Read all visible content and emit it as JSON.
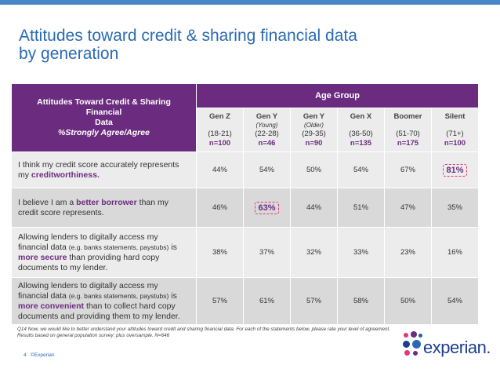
{
  "title_line1": "Attitudes toward credit & sharing financial data",
  "title_line2": "by generation",
  "header": {
    "left_line1": "Attitudes Toward Credit & Sharing Financial",
    "left_line2": "Data",
    "left_line3": "%Strongly Agree/Agree",
    "age_group": "Age Group"
  },
  "generations": [
    {
      "name": "Gen Z",
      "note": "",
      "age": "(18-21)",
      "n": "n=100"
    },
    {
      "name": "Gen Y",
      "note": "(Young)",
      "age": "(22-28)",
      "n": "n=46"
    },
    {
      "name": "Gen Y",
      "note": "(Older)",
      "age": "(29-35)",
      "n": "n=90"
    },
    {
      "name": "Gen X",
      "note": "",
      "age": "(36-50)",
      "n": "n=135"
    },
    {
      "name": "Boomer",
      "note": "",
      "age": "(51-70)",
      "n": "n=175"
    },
    {
      "name": "Silent",
      "note": "",
      "age": "(71+)",
      "n": "n=100"
    }
  ],
  "rows": [
    {
      "parts": [
        {
          "t": "I think my credit score accurately represents my ",
          "s": ""
        },
        {
          "t": "creditworthiness.",
          "s": "hl"
        }
      ],
      "values": [
        "44%",
        "54%",
        "50%",
        "54%",
        "67%",
        "81%"
      ],
      "highlight": 5
    },
    {
      "parts": [
        {
          "t": "I believe I am a ",
          "s": ""
        },
        {
          "t": "better borrower",
          "s": "hl"
        },
        {
          "t": " than my credit score represents.",
          "s": ""
        }
      ],
      "values": [
        "46%",
        "63%",
        "44%",
        "51%",
        "47%",
        "35%"
      ],
      "highlight": 1
    },
    {
      "parts": [
        {
          "t": "Allowing lenders to digitally access my financial data ",
          "s": ""
        },
        {
          "t": "(e.g. banks statements, paystubs)",
          "s": "sm"
        },
        {
          "t": " is ",
          "s": ""
        },
        {
          "t": "more secure",
          "s": "hl"
        },
        {
          "t": " than providing hard copy documents to my lender.",
          "s": ""
        }
      ],
      "values": [
        "38%",
        "37%",
        "32%",
        "33%",
        "23%",
        "16%"
      ],
      "highlight": -1
    },
    {
      "parts": [
        {
          "t": "Allowing lenders to digitally access my financial data ",
          "s": ""
        },
        {
          "t": "(e.g. banks statements, paystubs)",
          "s": "sm"
        },
        {
          "t": " is ",
          "s": ""
        },
        {
          "t": "more convenient",
          "s": "hl"
        },
        {
          "t": " than to collect hard copy documents and providing them to my lender.",
          "s": ""
        }
      ],
      "values": [
        "57%",
        "61%",
        "57%",
        "58%",
        "50%",
        "54%"
      ],
      "highlight": -1
    }
  ],
  "footnote_line1": "Q14 Now, we would like to better understand your attitudes toward credit and sharing financial data. For each of the statements below, please rate your level of agreement.",
  "footnote_line2": "Results based on general population survey; plus oversample. N=646",
  "page_number": "4",
  "copyright": "©Experian",
  "logo_text": "experian.",
  "colors": {
    "brand_purple": "#6b2c7f",
    "title_blue": "#2a6ab3",
    "highlight_pink": "#e8327a"
  }
}
